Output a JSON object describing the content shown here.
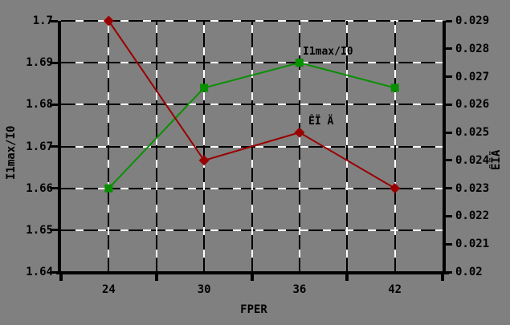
{
  "chart_data": {
    "type": "line",
    "background_color": "#808080",
    "xlabel": "FPER",
    "categories": [
      "24",
      "30",
      "36",
      "42"
    ],
    "left_axis": {
      "title": "I1max/I0",
      "min": 1.64,
      "max": 1.7,
      "tick_labels": [
        "1.7",
        "1.69",
        "1.68",
        "1.67",
        "1.66",
        "1.65",
        "1.64"
      ]
    },
    "right_axis": {
      "title": "ÊÏÄ",
      "min": 0.02,
      "max": 0.029,
      "tick_labels": [
        "0.029",
        "0.028",
        "0.027",
        "0.026",
        "0.025",
        "0.024",
        "0.023",
        "0.022",
        "0.021",
        "0.02"
      ]
    },
    "grid": {
      "h_divisions": 6,
      "v_divisions": 8,
      "style": "black-white-dashed"
    },
    "legend_position": "data-labels-inline",
    "series": [
      {
        "name": "I1max/I0",
        "label_text": "I1max/I0",
        "axis": "left",
        "color": "#089000",
        "marker": "square",
        "values": [
          1.66,
          1.684,
          1.69,
          1.684
        ]
      },
      {
        "name": "ÊÏÄ",
        "label_text": "ÊÏ Ä",
        "axis": "right",
        "color": "#990000",
        "marker": "diamond",
        "values": [
          0.029,
          0.024,
          0.025,
          0.023
        ]
      }
    ]
  }
}
